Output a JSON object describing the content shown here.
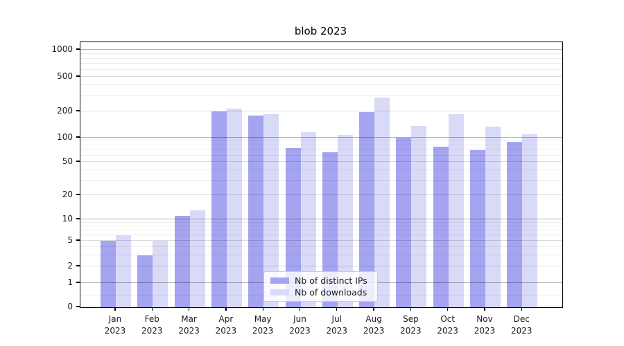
{
  "chart_data": {
    "type": "bar",
    "title": "blob 2023",
    "xlabel": "",
    "ylabel": "",
    "yscale": "symlog",
    "grid": true,
    "legend_position": "lower center",
    "ylim": [
      0,
      1200
    ],
    "yticks": [
      0,
      1,
      2,
      5,
      10,
      20,
      50,
      100,
      200,
      500,
      1000
    ],
    "ytick_labels": [
      "0",
      "1",
      "2",
      "5",
      "10",
      "20",
      "50",
      "100",
      "200",
      "500",
      "1000"
    ],
    "categories": [
      "Jan 2023",
      "Feb 2023",
      "Mar 2023",
      "Apr 2023",
      "May 2023",
      "Jun 2023",
      "Jul 2023",
      "Aug 2023",
      "Sep 2023",
      "Oct 2023",
      "Nov 2023",
      "Dec 2023"
    ],
    "series": [
      {
        "name": "Nb of distinct IPs",
        "color": "#a4a4f1",
        "values": [
          5,
          3,
          11,
          200,
          180,
          74,
          66,
          195,
          100,
          77,
          70,
          89
        ]
      },
      {
        "name": "Nb of downloads",
        "color": "#d9d9f8",
        "values": [
          6,
          5,
          13,
          215,
          186,
          115,
          108,
          290,
          136,
          186,
          133,
          110
        ]
      }
    ]
  }
}
